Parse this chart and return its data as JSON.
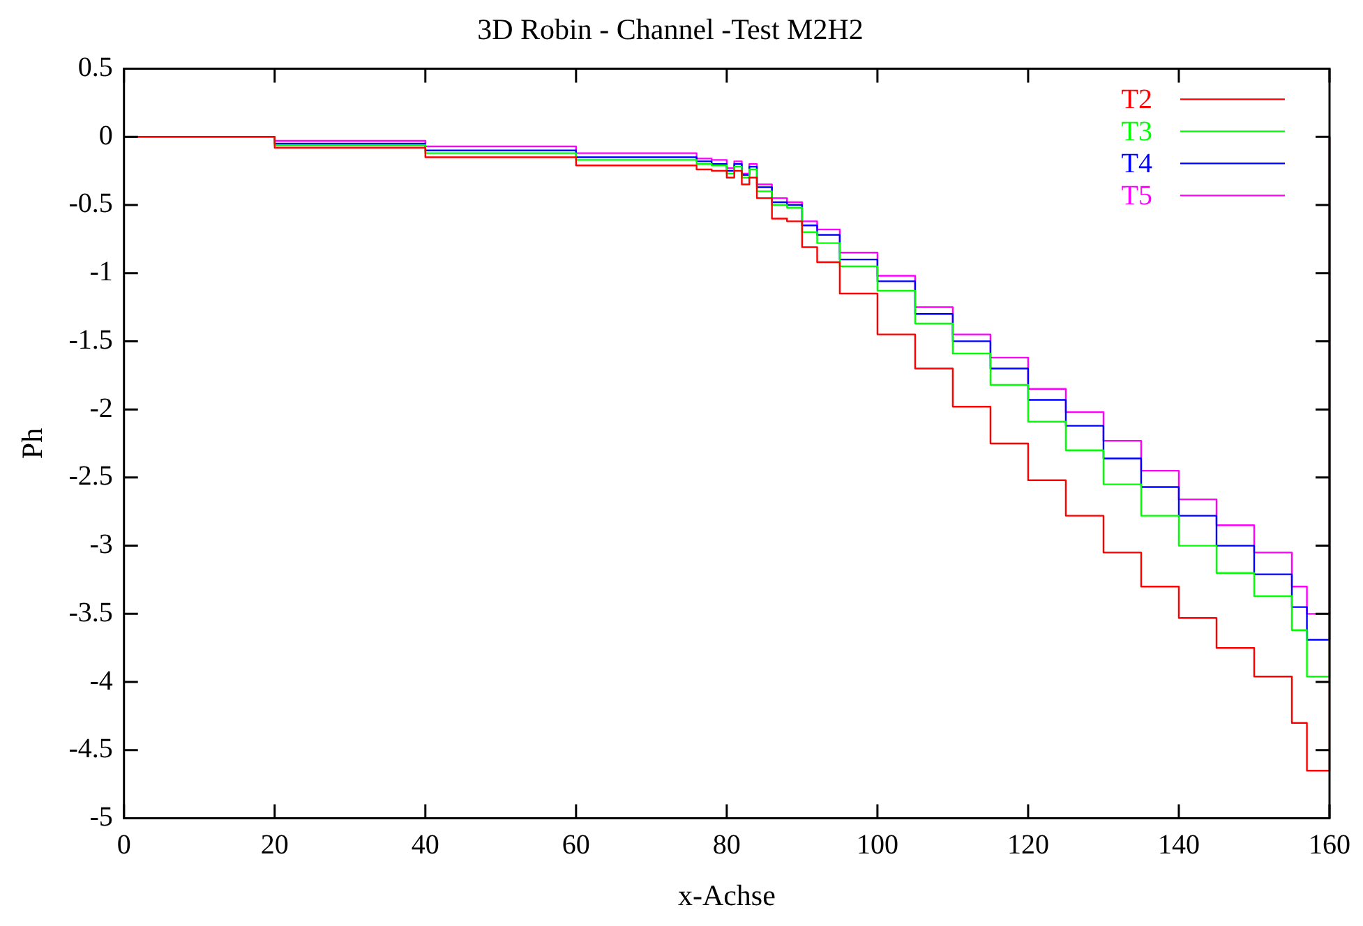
{
  "chart_data": {
    "type": "step",
    "title": "3D Robin - Channel -Test M2H2",
    "xlabel": "x-Achse",
    "ylabel": "Ph",
    "x": [
      0,
      20,
      40,
      60,
      76,
      78,
      80,
      81,
      82,
      83,
      84,
      86,
      88,
      90,
      92,
      95,
      100,
      105,
      110,
      115,
      120,
      125,
      130,
      135,
      140,
      145,
      150,
      155,
      157,
      160
    ],
    "series": [
      {
        "name": "T2",
        "color": "#ff0000",
        "values": [
          0,
          -0.08,
          -0.15,
          -0.21,
          -0.24,
          -0.25,
          -0.3,
          -0.25,
          -0.35,
          -0.3,
          -0.45,
          -0.6,
          -0.62,
          -0.81,
          -0.92,
          -1.15,
          -1.45,
          -1.7,
          -1.98,
          -2.25,
          -2.52,
          -2.78,
          -3.05,
          -3.3,
          -3.53,
          -3.75,
          -3.96,
          -4.3,
          -4.65,
          0
        ]
      },
      {
        "name": "T3",
        "color": "#00ff00",
        "values": [
          0,
          -0.06,
          -0.12,
          -0.17,
          -0.2,
          -0.21,
          -0.27,
          -0.22,
          -0.3,
          -0.24,
          -0.4,
          -0.5,
          -0.52,
          -0.7,
          -0.78,
          -0.95,
          -1.13,
          -1.37,
          -1.59,
          -1.82,
          -2.09,
          -2.3,
          -2.55,
          -2.78,
          -3.0,
          -3.2,
          -3.37,
          -3.62,
          -3.96,
          0
        ]
      },
      {
        "name": "T4",
        "color": "#0000ff",
        "values": [
          0,
          -0.05,
          -0.1,
          -0.15,
          -0.18,
          -0.2,
          -0.25,
          -0.2,
          -0.28,
          -0.22,
          -0.37,
          -0.48,
          -0.5,
          -0.65,
          -0.72,
          -0.9,
          -1.06,
          -1.3,
          -1.5,
          -1.7,
          -1.93,
          -2.12,
          -2.36,
          -2.57,
          -2.78,
          -3.0,
          -3.21,
          -3.45,
          -3.69,
          0
        ]
      },
      {
        "name": "T5",
        "color": "#ff00ff",
        "values": [
          0,
          -0.03,
          -0.07,
          -0.12,
          -0.16,
          -0.17,
          -0.23,
          -0.18,
          -0.27,
          -0.2,
          -0.35,
          -0.45,
          -0.48,
          -0.62,
          -0.68,
          -0.85,
          -1.02,
          -1.25,
          -1.45,
          -1.62,
          -1.85,
          -2.02,
          -2.23,
          -2.45,
          -2.66,
          -2.85,
          -3.05,
          -3.3,
          -3.5,
          0
        ]
      }
    ],
    "xlim": [
      0,
      160
    ],
    "xticks": [
      0,
      20,
      40,
      60,
      80,
      100,
      120,
      140,
      160
    ],
    "ylim": [
      -5,
      0.5
    ],
    "yticks": [
      -5,
      -4.5,
      -4,
      -3.5,
      -3,
      -2.5,
      -2,
      -1.5,
      -1,
      -0.5,
      0,
      0.5
    ],
    "grid": false,
    "legend": "top right"
  }
}
